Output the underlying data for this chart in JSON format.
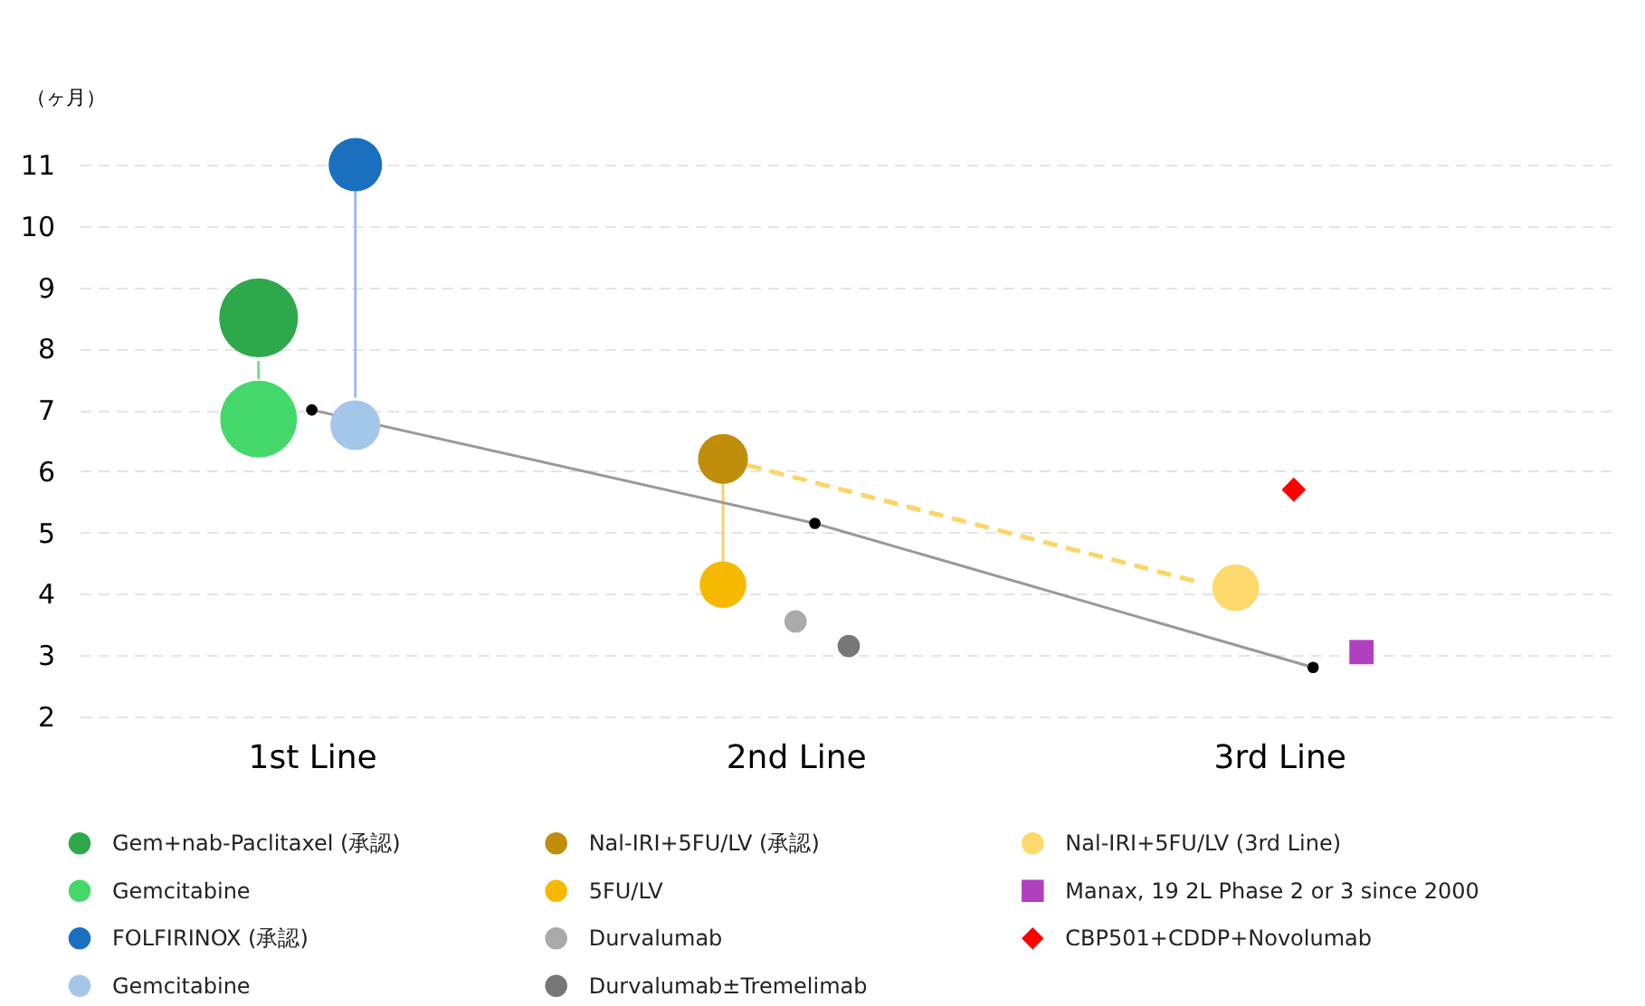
{
  "chart_data": {
    "type": "bubble",
    "ylabel": "（ヶ月）",
    "xticks": [
      {
        "value": 1,
        "label": "1st Line"
      },
      {
        "value": 2,
        "label": "2nd Line"
      },
      {
        "value": 3,
        "label": "3rd Line"
      }
    ],
    "xlim": [
      0.52,
      3.7
    ],
    "ylim": [
      2,
      11
    ],
    "yticks": [
      2,
      3,
      4,
      5,
      6,
      7,
      8,
      9,
      10,
      11
    ],
    "grid": "y",
    "legend": "bottom",
    "series": [
      {
        "type": "line",
        "color": "#7ed889",
        "x": [
          0.89,
          0.89
        ],
        "values": [
          7.8,
          7.5
        ]
      },
      {
        "type": "line",
        "color": "#a0bce6",
        "x": [
          1.09,
          1.09
        ],
        "values": [
          10.6,
          7.2
        ]
      },
      {
        "type": "line",
        "color": "#f7d06b",
        "x": [
          1.85,
          1.85
        ],
        "values": [
          5.8,
          4.5
        ]
      },
      {
        "type": "line",
        "color": "#fcd568",
        "line_style": "dashed",
        "x": [
          1.9,
          2.83
        ],
        "values": [
          6.1,
          4.2
        ]
      },
      {
        "type": "line",
        "color": "#999999",
        "x": [
          1.0,
          2.04,
          3.07
        ],
        "values": [
          7.0,
          5.15,
          2.8
        ]
      },
      {
        "type": "scatter",
        "marker": "circle",
        "color": "#000000",
        "x": [
          1.0,
          2.04,
          3.07
        ],
        "values": [
          7.0,
          5.15,
          2.8
        ]
      },
      {
        "name": "Gem+nab-Paclitaxel (承認)",
        "color": "#2ea84a",
        "x": [
          0.89
        ],
        "values": [
          8.5
        ],
        "sizes": [
          1
        ]
      },
      {
        "name": "Gemcitabine",
        "color": "#44d86a",
        "x": [
          0.89
        ],
        "values": [
          6.85
        ],
        "sizes": [
          0.95
        ]
      },
      {
        "name": "FOLFIRINOX (承認)",
        "color": "#1a6fbf",
        "x": [
          1.09
        ],
        "values": [
          11.0
        ],
        "sizes": [
          0.46
        ]
      },
      {
        "name": "Gemcitabine",
        "color": "#a4c6e8",
        "x": [
          1.09
        ],
        "values": [
          6.75
        ],
        "sizes": [
          0.4
        ]
      },
      {
        "name": "Nal-IRI+5FU/LV (承認)",
        "color": "#c08e0a",
        "x": [
          1.85
        ],
        "values": [
          6.2
        ],
        "sizes": [
          0.4
        ]
      },
      {
        "name": "5FU/LV",
        "color": "#f7b900",
        "x": [
          1.85
        ],
        "values": [
          4.15
        ],
        "sizes": [
          0.35
        ]
      },
      {
        "name": "Durvalumab",
        "color": "#aaaaaa",
        "x": [
          2.0
        ],
        "values": [
          3.55
        ],
        "sizes": [
          0.08
        ]
      },
      {
        "name": "Durvalumab±Tremelimab",
        "color": "#777777",
        "x": [
          2.11
        ],
        "values": [
          3.15
        ],
        "sizes": [
          0.08
        ]
      },
      {
        "name": "Nal-IRI+5FU/LV (3rd Line)",
        "color": "#fdd86a",
        "x": [
          2.91
        ],
        "values": [
          4.1
        ],
        "sizes": [
          0.35
        ]
      },
      {
        "name": "Manax, 19 2L Phase 2 or 3 since 2000",
        "type": "scatter",
        "marker": "square",
        "color": "#b040c0",
        "x": [
          3.17
        ],
        "values": [
          3.05
        ]
      },
      {
        "name": "CBP501+CDDP+Novolumab",
        "type": "scatter",
        "marker": "diamond",
        "color": "#ff0000",
        "x": [
          3.03
        ],
        "values": [
          5.7
        ]
      }
    ]
  }
}
